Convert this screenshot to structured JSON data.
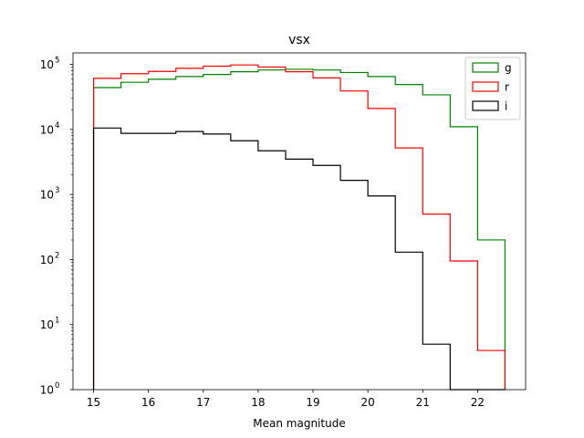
{
  "chart_data": {
    "type": "histogram-step",
    "title": "vsx",
    "xlabel": "Mean magnitude",
    "ylabel": "",
    "y_scale": "log",
    "xlim": [
      14.625,
      22.875
    ],
    "ylim": [
      1,
      150000
    ],
    "x_ticks": [
      15,
      16,
      17,
      18,
      19,
      20,
      21,
      22
    ],
    "y_ticks": [
      {
        "value": 1,
        "base": "10",
        "exp": "0"
      },
      {
        "value": 10,
        "base": "10",
        "exp": "1"
      },
      {
        "value": 100,
        "base": "10",
        "exp": "2"
      },
      {
        "value": 1000,
        "base": "10",
        "exp": "3"
      },
      {
        "value": 10000,
        "base": "10",
        "exp": "4"
      },
      {
        "value": 100000,
        "base": "10",
        "exp": "5"
      }
    ],
    "bin_edges": [
      15.0,
      15.5,
      16.0,
      16.5,
      17.0,
      17.5,
      18.0,
      18.5,
      19.0,
      19.5,
      20.0,
      20.5,
      21.0,
      21.5,
      22.0,
      22.5
    ],
    "legend_position": "top-right",
    "series": [
      {
        "name": "g",
        "color": "#008000",
        "values": [
          44000,
          53000,
          59000,
          65000,
          70000,
          77000,
          82000,
          84000,
          82000,
          75000,
          65000,
          49000,
          34000,
          11000,
          200
        ]
      },
      {
        "name": "r",
        "color": "#ff0000",
        "values": [
          61000,
          72000,
          78000,
          87000,
          94000,
          98000,
          91000,
          77000,
          62000,
          39000,
          21000,
          5200,
          500,
          95,
          4
        ]
      },
      {
        "name": "i",
        "color": "#000000",
        "values": [
          10500,
          8700,
          8700,
          9300,
          8500,
          6700,
          4700,
          3500,
          2800,
          1650,
          950,
          130,
          5,
          0,
          0
        ]
      }
    ]
  }
}
